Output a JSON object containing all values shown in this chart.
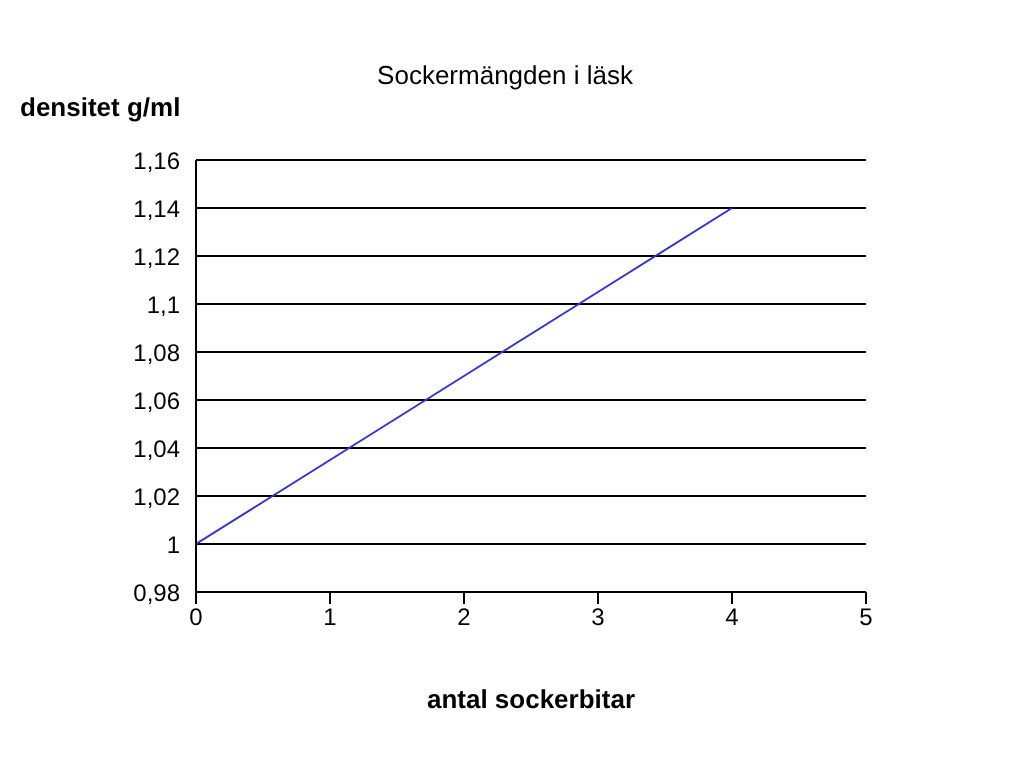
{
  "chart_data": {
    "type": "line",
    "title": "Sockermängden i läsk",
    "xlabel": "antal sockerbitar",
    "ylabel": "densitet g/ml",
    "x": [
      0,
      1,
      2,
      3,
      4
    ],
    "series": [
      {
        "color": "#3333cc",
        "values": [
          1,
          1.035,
          1.07,
          1.105,
          1.14
        ]
      }
    ],
    "xlim": [
      0,
      5
    ],
    "xticks": [
      0,
      1,
      2,
      3,
      4,
      5
    ],
    "ylim": [
      0.98,
      1.16
    ],
    "yticks": [
      {
        "value": 0.98,
        "label": "0,98"
      },
      1,
      {
        "value": 1.02,
        "label": "1,02"
      },
      {
        "value": 1.04,
        "label": "1,04"
      },
      {
        "value": 1.06,
        "label": "1,06"
      },
      {
        "value": 1.08,
        "label": "1,08"
      },
      {
        "value": 1.1,
        "label": "1,1"
      },
      {
        "value": 1.12,
        "label": "1,12"
      },
      {
        "value": 1.14,
        "label": "1,14"
      },
      {
        "value": 1.16,
        "label": "1,16"
      }
    ],
    "grid": "y",
    "legend": false,
    "marker": "none",
    "line_style": "solid"
  }
}
